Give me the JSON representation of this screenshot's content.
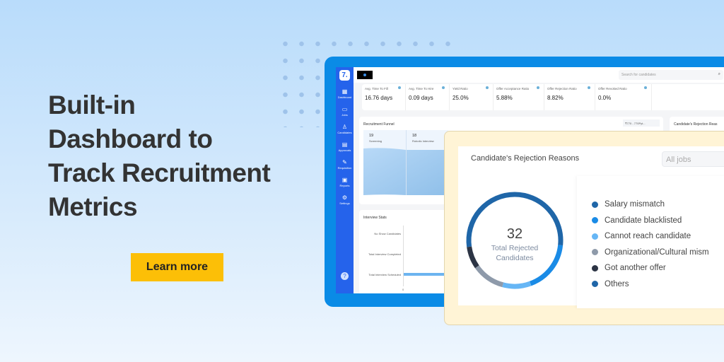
{
  "banner": {
    "headline": [
      "Built-in",
      "Dashboard to",
      "Track Recruitment",
      "Metrics"
    ],
    "cta": "Learn more"
  },
  "app": {
    "logo": "7.",
    "sidebar": [
      {
        "label": "Dashboard",
        "icon": "grid-icon"
      },
      {
        "label": "Jobs",
        "icon": "briefcase-icon"
      },
      {
        "label": "Candidates",
        "icon": "user-icon"
      },
      {
        "label": "Approvals",
        "icon": "clipboard-icon"
      },
      {
        "label": "Requisition",
        "icon": "edit-icon"
      },
      {
        "label": "Reports",
        "icon": "report-icon"
      },
      {
        "label": "Settings",
        "icon": "gear-icon"
      }
    ],
    "search_placeholder": "Search for candidates",
    "kpis": [
      {
        "label": "Avg. Time To Fill",
        "value": "16.76 days"
      },
      {
        "label": "Avg. Time To Hire",
        "value": "0.09 days"
      },
      {
        "label": "Yield Ratio",
        "value": "25.0%"
      },
      {
        "label": "Offer Acceptance Ratio",
        "value": "5.88%"
      },
      {
        "label": "Offer Rejection Ratio",
        "value": "8.82%"
      },
      {
        "label": "Offer Revoked Ratio",
        "value": "0.0%"
      }
    ],
    "funnel": {
      "title": "Recruitment Funnel",
      "filter": "₹770 - 770Pyt...",
      "stages": [
        {
          "count": "19",
          "label": "Screening"
        },
        {
          "count": "18",
          "label": "Robotic Interview"
        }
      ]
    },
    "interview": {
      "title": "Interview Stats",
      "labels": [
        "No Show Candidates",
        "Total Interview Completed",
        "Total Interview Scheduled"
      ],
      "axis_zero": "0"
    },
    "rejection_partial_title": "Candidate's Rejection Reas"
  },
  "rejection": {
    "title": "Candidate's Rejection Reasons",
    "filter": "All jobs",
    "total": "32",
    "total_label": [
      "Total Rejected",
      "Candidates"
    ],
    "reasons": [
      {
        "label": "Salary mismatch",
        "color": "#1f66a8"
      },
      {
        "label": "Candidate blacklisted",
        "color": "#1a8be6"
      },
      {
        "label": "Cannot reach candidate",
        "color": "#66b6f5"
      },
      {
        "label": "Organizational/Cultural mism",
        "color": "#8e9aaa"
      },
      {
        "label": "Got another offer",
        "color": "#2c3444"
      },
      {
        "label": "Others",
        "color": "#1f66a8"
      }
    ]
  }
}
